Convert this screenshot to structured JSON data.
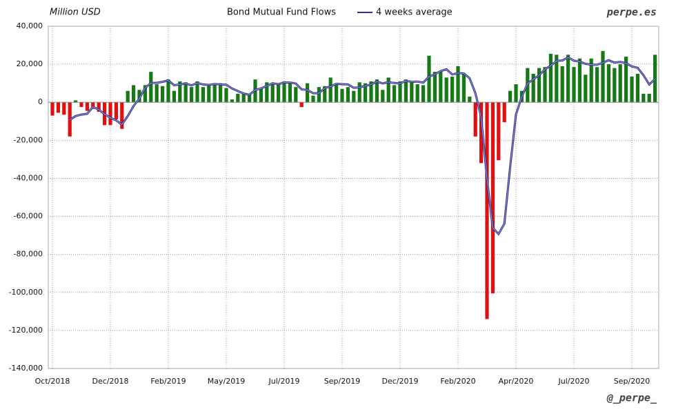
{
  "chart_data": {
    "type": "bar",
    "title": "Bond Mutual Fund Flows",
    "y_label": "Million USD",
    "watermark": "perpe.es",
    "credit": "@_perpe_",
    "positive_color": "#157a15",
    "negative_color": "#e01010",
    "grid": true,
    "ylim": [
      -140000,
      40000
    ],
    "yticks": [
      {
        "value": -140000,
        "label": "-140,000"
      },
      {
        "value": -120000,
        "label": "-120,000"
      },
      {
        "value": -100000,
        "label": "-100,000"
      },
      {
        "value": -80000,
        "label": "-80,000"
      },
      {
        "value": -60000,
        "label": "-60,000"
      },
      {
        "value": -40000,
        "label": "-40,000"
      },
      {
        "value": -20000,
        "label": "-20,000"
      },
      {
        "value": 0,
        "label": "0"
      },
      {
        "value": 20000,
        "label": "20,000"
      },
      {
        "value": 40000,
        "label": "40,000"
      }
    ],
    "categories": [
      "Oct/2018",
      null,
      null,
      null,
      null,
      null,
      null,
      null,
      null,
      null,
      "Dec/2018",
      null,
      null,
      null,
      null,
      null,
      null,
      null,
      null,
      null,
      "Feb/2019",
      null,
      null,
      null,
      null,
      null,
      null,
      null,
      null,
      null,
      "May/2019",
      null,
      null,
      null,
      null,
      null,
      null,
      null,
      null,
      null,
      "Jul/2019",
      null,
      null,
      null,
      null,
      null,
      null,
      null,
      null,
      null,
      "Sep/2019",
      null,
      null,
      null,
      null,
      null,
      null,
      null,
      null,
      null,
      "Dec/2019",
      null,
      null,
      null,
      null,
      null,
      null,
      null,
      null,
      null,
      "Feb/2020",
      null,
      null,
      null,
      null,
      null,
      null,
      null,
      null,
      null,
      "Apr/2020",
      null,
      null,
      null,
      null,
      null,
      null,
      null,
      null,
      null,
      "Jul/2020",
      null,
      null,
      null,
      null,
      null,
      null,
      null,
      null,
      null,
      "Sep/2020",
      null,
      null,
      null,
      null
    ],
    "values": [
      -7000,
      -5500,
      -6500,
      -18000,
      1000,
      -2500,
      -4500,
      -3500,
      -5000,
      -12000,
      -12000,
      -9000,
      -14000,
      6000,
      9000,
      6500,
      9000,
      16000,
      9500,
      8500,
      12000,
      6000,
      11000,
      10500,
      8000,
      11000,
      8000,
      9500,
      10000,
      10000,
      7500,
      1500,
      4500,
      5000,
      4500,
      12000,
      7500,
      10500,
      10000,
      10000,
      11000,
      10500,
      8000,
      -2500,
      10000,
      3500,
      8000,
      8500,
      13000,
      9500,
      7000,
      8000,
      6000,
      10500,
      10000,
      11000,
      12000,
      6500,
      13000,
      9000,
      11000,
      12000,
      11000,
      9500,
      9000,
      24500,
      16000,
      16000,
      13000,
      13500,
      19000,
      15000,
      3000,
      -18000,
      -32000,
      -114000,
      -100500,
      -30500,
      -10500,
      6000,
      9500,
      6000,
      18000,
      15000,
      18000,
      18500,
      25500,
      25000,
      19000,
      25000,
      18500,
      23000,
      14500,
      23000,
      18500,
      27000,
      20000,
      18000,
      20000,
      24000,
      13500,
      15000,
      4500,
      4500,
      25000
    ],
    "series": [
      {
        "name": "4 weeks average",
        "color": "#2e2e8c",
        "values": [
          null,
          null,
          null,
          -9250,
          -7250,
          -6500,
          -6000,
          -2375,
          -3875,
          -6250,
          -8125,
          -9500,
          -11750,
          -7250,
          -2000,
          1875,
          7625,
          10125,
          10250,
          10750,
          11500,
          9000,
          9375,
          9875,
          8875,
          10125,
          9375,
          9125,
          9625,
          9375,
          9250,
          7250,
          5875,
          4625,
          3875,
          6500,
          7250,
          8625,
          10000,
          9500,
          10375,
          10375,
          9875,
          6750,
          6500,
          4750,
          4750,
          7500,
          8250,
          9750,
          9500,
          9375,
          7625,
          7875,
          8625,
          9375,
          10875,
          9875,
          10625,
          10125,
          9875,
          11250,
          10750,
          10875,
          10375,
          13500,
          14750,
          16375,
          17375,
          14625,
          15375,
          15125,
          12625,
          4750,
          -8000,
          -40250,
          -66125,
          -69250,
          -63875,
          -33875,
          -6375,
          2750,
          9875,
          12125,
          14250,
          17375,
          19250,
          21750,
          22000,
          23625,
          21875,
          21375,
          20250,
          19750,
          19750,
          20750,
          22125,
          20875,
          21250,
          20500,
          18875,
          18125,
          14250,
          9375,
          12250
        ]
      }
    ]
  }
}
